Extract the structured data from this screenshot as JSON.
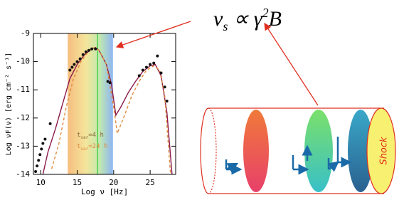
{
  "chart_data": {
    "type": "line",
    "x_label": "Log ν [Hz]",
    "y_label": "Log νF(ν) [erg cm⁻² s⁻¹]",
    "xlim": [
      9,
      28.5
    ],
    "ylim": [
      -14,
      -9
    ],
    "xticks": [
      10,
      15,
      20,
      25
    ],
    "yticks": [
      -14,
      -13,
      -12,
      -11,
      -10,
      -9
    ],
    "band": [
      13.7,
      19.9
    ],
    "vline": 17.8,
    "vline_color": "#4fd04f",
    "annotations": [
      {
        "t": "t",
        "sub": "var",
        "rest": "=4 h",
        "color": "#8a6a3a"
      },
      {
        "t": "t",
        "sub": "var",
        "rest": "=24 h",
        "color": "#e08a3c"
      }
    ],
    "series": [
      {
        "style": "solid",
        "color": "#8b1a4a",
        "x": [
          10.3,
          11,
          12,
          13,
          14,
          15,
          16,
          17,
          17.5,
          18,
          19,
          19.7,
          20.3,
          21,
          22,
          23,
          24,
          25,
          25.7,
          26.5,
          27.3,
          28
        ],
        "values": [
          -14,
          -13.2,
          -12.4,
          -11.5,
          -10.6,
          -10.1,
          -9.75,
          -9.55,
          -9.5,
          -9.6,
          -10.1,
          -10.8,
          -11.9,
          -11.6,
          -11.1,
          -10.7,
          -10.35,
          -10.15,
          -10.1,
          -10.5,
          -11.8,
          -14
        ]
      },
      {
        "style": "dashed",
        "color": "#e08a3c",
        "x": [
          11.5,
          12.5,
          13.5,
          14.5,
          15.5,
          16.5,
          17.3,
          18,
          19,
          20,
          20.5,
          21.5,
          22.5,
          23.5,
          24.5,
          25.5,
          26.3,
          27,
          27.8
        ],
        "values": [
          -13.8,
          -12.9,
          -11.6,
          -10.6,
          -10,
          -9.65,
          -9.5,
          -9.6,
          -10.1,
          -11.6,
          -12.55,
          -11.9,
          -11.2,
          -10.7,
          -10.3,
          -10.15,
          -10.3,
          -11.2,
          -14
        ]
      },
      {
        "style": "points",
        "color": "#111111",
        "x": [
          9.3,
          9.5,
          9.7,
          9.9,
          10.1,
          10.3,
          10.6,
          11.3,
          14,
          14.3,
          14.6,
          15,
          15.4,
          15.8,
          16.2,
          16.6,
          17,
          17.5,
          19.2,
          19.5,
          23.5,
          24,
          24.5,
          25,
          25.5,
          26,
          26.5,
          27,
          27.3
        ],
        "values": [
          -13.9,
          -13.7,
          -13.5,
          -13.3,
          -13.1,
          -12.9,
          -12.75,
          -12.2,
          -10.3,
          -10.2,
          -10.1,
          -10,
          -9.9,
          -9.75,
          -9.65,
          -9.6,
          -9.55,
          -9.55,
          -10.7,
          -10.75,
          -10.5,
          -10.3,
          -10.2,
          -10.1,
          -10.05,
          -9.8,
          -10.4,
          -10.9,
          -11.4
        ]
      }
    ]
  },
  "diagram": {
    "formula": {
      "nu": "ν",
      "sub": "s",
      "mid": " ∝ γ",
      "sup": "2",
      "end": "B"
    },
    "shock": "Shock"
  }
}
